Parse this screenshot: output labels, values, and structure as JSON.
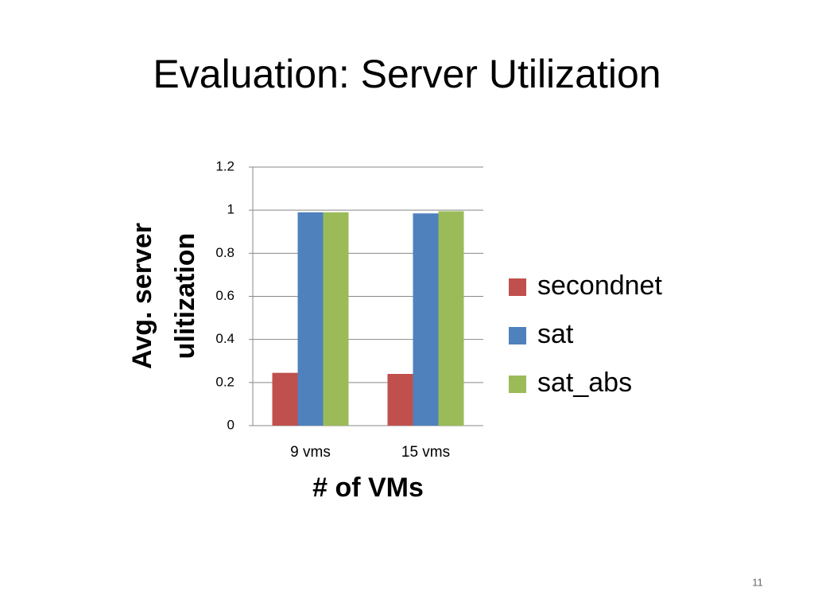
{
  "slide": {
    "title": "Evaluation: Server Utilization",
    "number": "11"
  },
  "chart_data": {
    "type": "bar",
    "categories": [
      "9 vms",
      "15 vms"
    ],
    "series": [
      {
        "name": "secondnet",
        "color": "#c0504d",
        "values": [
          0.245,
          0.24
        ]
      },
      {
        "name": "sat",
        "color": "#4f81bd",
        "values": [
          0.99,
          0.985
        ]
      },
      {
        "name": "sat_abs",
        "color": "#9bbb59",
        "values": [
          0.99,
          0.995
        ]
      }
    ],
    "ylim": [
      0,
      1.2
    ],
    "yticks": [
      0,
      0.2,
      0.4,
      0.6,
      0.8,
      1,
      1.2
    ],
    "grid": true,
    "ylabel": [
      "Avg. server",
      "ulitization"
    ],
    "xlabel": "# of VMs",
    "legend": "right"
  }
}
